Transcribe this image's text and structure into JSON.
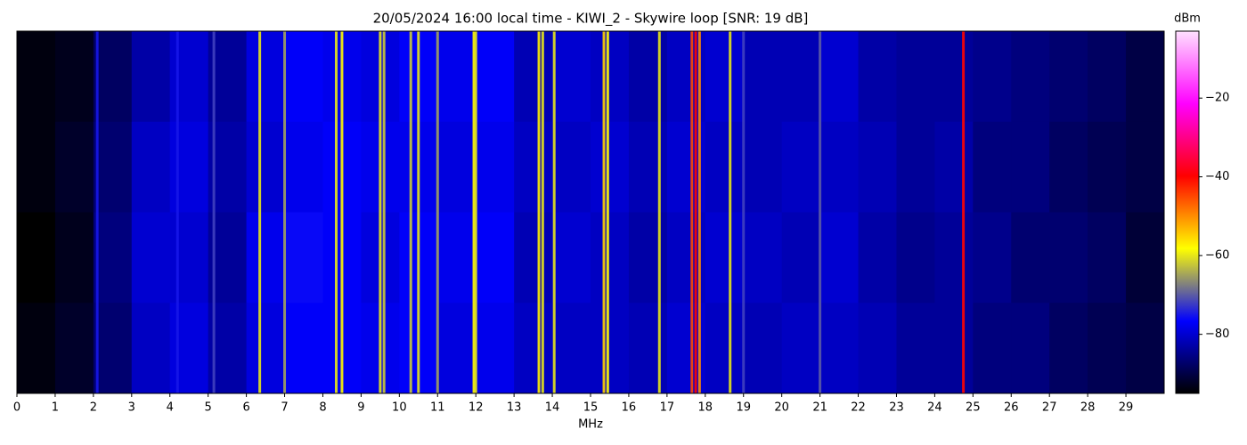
{
  "chart_data": {
    "type": "heatmap",
    "title": "20/05/2024 16:00 local time - KIWI_2 - Skywire loop [SNR: 19 dB]",
    "x_label": "MHz",
    "colorbar_label": "dBm",
    "xlim": [
      0,
      30
    ],
    "xticks": [
      0,
      1,
      2,
      3,
      4,
      5,
      6,
      7,
      8,
      9,
      10,
      11,
      12,
      13,
      14,
      15,
      16,
      17,
      18,
      19,
      20,
      21,
      22,
      23,
      24,
      25,
      26,
      27,
      28,
      29
    ],
    "clim": [
      -95,
      -3
    ],
    "cticks": [
      {
        "value": -20,
        "label": "−20"
      },
      {
        "value": -40,
        "label": "−40"
      },
      {
        "value": -60,
        "label": "−60"
      },
      {
        "value": -80,
        "label": "−80"
      }
    ],
    "colormap": [
      "#000000",
      "#0000ff",
      "#ffff00",
      "#ff0000",
      "#ff00ff",
      "#ffe0ff"
    ],
    "z": [
      [
        -94,
        -93,
        -88,
        -83,
        -80,
        -84,
        -79,
        -77,
        -78,
        -79,
        -77,
        -78,
        -77,
        -82,
        -80,
        -81,
        -83,
        -81,
        -80,
        -82,
        -82,
        -80,
        -83,
        -84,
        -84,
        -85,
        -86,
        -87,
        -88,
        -90
      ],
      [
        -94,
        -92,
        -87,
        -81,
        -79,
        -83,
        -80,
        -78,
        -77,
        -78,
        -78,
        -79,
        -78,
        -81,
        -81,
        -80,
        -82,
        -80,
        -81,
        -82,
        -81,
        -81,
        -82,
        -84,
        -83,
        -86,
        -86,
        -88,
        -89,
        -90
      ],
      [
        -95,
        -93,
        -86,
        -80,
        -80,
        -84,
        -78,
        -76,
        -77,
        -79,
        -77,
        -78,
        -77,
        -82,
        -80,
        -81,
        -83,
        -81,
        -80,
        -81,
        -82,
        -80,
        -83,
        -85,
        -84,
        -85,
        -87,
        -87,
        -88,
        -91
      ],
      [
        -94,
        -92,
        -87,
        -81,
        -79,
        -83,
        -79,
        -77,
        -77,
        -78,
        -77,
        -79,
        -78,
        -81,
        -81,
        -81,
        -82,
        -80,
        -81,
        -82,
        -81,
        -81,
        -82,
        -84,
        -84,
        -86,
        -86,
        -88,
        -89,
        -90
      ]
    ],
    "signals": {
      "freqs": [
        2.1,
        4.2,
        5.15,
        6.35,
        7.0,
        8.35,
        8.5,
        9.5,
        9.6,
        10.3,
        10.5,
        11.0,
        11.95,
        12.0,
        13.65,
        13.75,
        14.05,
        15.35,
        15.45,
        16.8,
        17.65,
        17.75,
        17.85,
        18.65,
        19.0,
        21.0,
        24.75
      ],
      "levels": [
        -75,
        -75,
        -72,
        -60,
        -65,
        -60,
        -58,
        -60,
        -62,
        -62,
        -60,
        -65,
        -58,
        -60,
        -57,
        -60,
        -60,
        -55,
        -58,
        -60,
        -45,
        -40,
        -50,
        -60,
        -72,
        -70,
        -40
      ]
    }
  }
}
